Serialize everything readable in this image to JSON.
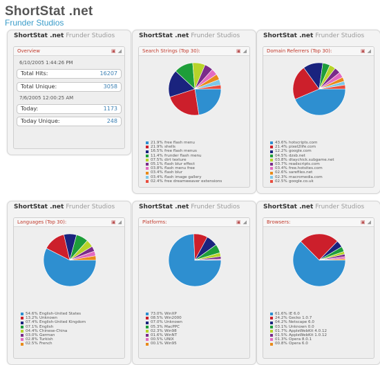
{
  "site": {
    "title": "ShortStat .net",
    "subtitle": "Frunder Studios"
  },
  "brand": {
    "name": "ShortStat .net",
    "studio": "Frunder Studios"
  },
  "overview": {
    "title": "Overview",
    "date1": "6/10/2005 1:44:26 PM",
    "total_hits_label": "Total Hits:",
    "total_hits": "16207",
    "total_unique_label": "Total Unique:",
    "total_unique": "3058",
    "date2": "7/6/2005 12:00:25 AM",
    "today_label": "Today:",
    "today": "1173",
    "today_unique_label": "Today Unique:",
    "today_unique": "248"
  },
  "search": {
    "title": "Search Strings (Top 30):",
    "legend": [
      {
        "value": "21.9%",
        "label": "free flash menu",
        "color": "#2e8fd0"
      },
      {
        "value": "21.9%",
        "label": "shells",
        "color": "#cc1f2b"
      },
      {
        "value": "16.5%",
        "label": "free flash menus",
        "color": "#1a237e"
      },
      {
        "value": "11.4%",
        "label": "frunder flash menu",
        "color": "#1e9e3a"
      },
      {
        "value": "07.5%",
        "label": "dirt texture",
        "color": "#b7d32a"
      },
      {
        "value": "05.1%",
        "label": "flash blur effect",
        "color": "#7a2b8a"
      },
      {
        "value": "03.8%",
        "label": "flash menu free",
        "color": "#e36ac0"
      },
      {
        "value": "03.4%",
        "label": "flash blur",
        "color": "#e88a1a"
      },
      {
        "value": "03.4%",
        "label": "flash image gallery",
        "color": "#7ec8e8"
      },
      {
        "value": "02.4%",
        "label": "free dreamweaver extensions",
        "color": "#e84c3d"
      }
    ]
  },
  "referrers": {
    "title": "Domain Referrers (Top 30):",
    "legend": [
      {
        "value": "43.6%",
        "label": "hotscripts.com",
        "color": "#2e8fd0"
      },
      {
        "value": "21.4%",
        "label": "pixel2life.com",
        "color": "#cc1f2b"
      },
      {
        "value": "12.2%",
        "label": "google.com",
        "color": "#1a237e"
      },
      {
        "value": "04.5%",
        "label": "dzsb.net",
        "color": "#1e9e3a"
      },
      {
        "value": "03.8%",
        "label": "dtaychick.subgame.net",
        "color": "#b7d32a"
      },
      {
        "value": "03.7%",
        "label": "readscripts.com",
        "color": "#7a2b8a"
      },
      {
        "value": "03.4%",
        "label": "free.hotsites.com",
        "color": "#e36ac0"
      },
      {
        "value": "02.6%",
        "label": "sarefiles.net",
        "color": "#e88a1a"
      },
      {
        "value": "02.3%",
        "label": "macromedia.com",
        "color": "#7ec8e8"
      },
      {
        "value": "02.5%",
        "label": "google.co.uk",
        "color": "#e84c3d"
      }
    ]
  },
  "languages": {
    "title": "Languages (Top 30):",
    "legend": [
      {
        "value": "54.6%",
        "label": "English-United States",
        "color": "#2e8fd0"
      },
      {
        "value": "13.2%",
        "label": "Unknown",
        "color": "#cc1f2b"
      },
      {
        "value": "07.4%",
        "label": "English-United Kingdom",
        "color": "#1a237e"
      },
      {
        "value": "07.1%",
        "label": "English",
        "color": "#1e9e3a"
      },
      {
        "value": "04.4%",
        "label": "Chinese-China",
        "color": "#b7d32a"
      },
      {
        "value": "03.0%",
        "label": "German",
        "color": "#7a2b8a"
      },
      {
        "value": "02.8%",
        "label": "Turkish",
        "color": "#e36ac0"
      },
      {
        "value": "02.5%",
        "label": "French",
        "color": "#e88a1a"
      }
    ]
  },
  "platforms": {
    "title": "Platforms:",
    "legend": [
      {
        "value": "73.0%",
        "label": "WinXP",
        "color": "#2e8fd0"
      },
      {
        "value": "08.5%",
        "label": "Win2000",
        "color": "#cc1f2b"
      },
      {
        "value": "07.0%",
        "label": "Unknown",
        "color": "#1a237e"
      },
      {
        "value": "05.3%",
        "label": "MacPPC",
        "color": "#1e9e3a"
      },
      {
        "value": "02.3%",
        "label": "Win98",
        "color": "#b7d32a"
      },
      {
        "value": "01.6%",
        "label": "WinNT",
        "color": "#7a2b8a"
      },
      {
        "value": "00.5%",
        "label": "UNIX",
        "color": "#e36ac0"
      },
      {
        "value": "00.1%",
        "label": "Win95",
        "color": "#e88a1a"
      }
    ]
  },
  "browsers": {
    "title": "Browsers:",
    "legend": [
      {
        "value": "61.6%",
        "label": "IE 6.0",
        "color": "#2e8fd0"
      },
      {
        "value": "24.2%",
        "label": "Gecko 1.0.7",
        "color": "#cc1f2b"
      },
      {
        "value": "04.2%",
        "label": "Netscape 6.0",
        "color": "#1a237e"
      },
      {
        "value": "03.1%",
        "label": "Unknown 0.0",
        "color": "#1e9e3a"
      },
      {
        "value": "01.7%",
        "label": "AppleWebKit 4.0.12",
        "color": "#b7d32a"
      },
      {
        "value": "01.5%",
        "label": "AppleWebKit 1.0.12",
        "color": "#7a2b8a"
      },
      {
        "value": "01.3%",
        "label": "Opera 8.0.1",
        "color": "#e36ac0"
      },
      {
        "value": "00.8%",
        "label": "Opera 6.0",
        "color": "#e88a1a"
      }
    ]
  },
  "chart_data": [
    {
      "type": "pie",
      "title": "Search Strings (Top 30):",
      "categories": [
        "free flash menu",
        "shells",
        "free flash menus",
        "frunder flash menu",
        "dirt texture",
        "flash blur effect",
        "flash menu free",
        "flash blur",
        "flash image gallery",
        "free dreamweaver extensions"
      ],
      "values": [
        21.9,
        21.9,
        16.5,
        11.4,
        7.5,
        5.1,
        3.8,
        3.4,
        3.4,
        2.4
      ]
    },
    {
      "type": "pie",
      "title": "Domain Referrers (Top 30):",
      "categories": [
        "hotscripts.com",
        "pixel2life.com",
        "google.com",
        "dzsb.net",
        "dtaychick.subgame.net",
        "readscripts.com",
        "free.hotsites.com",
        "sarefiles.net",
        "macromedia.com",
        "google.co.uk"
      ],
      "values": [
        43.6,
        21.4,
        12.2,
        4.5,
        3.8,
        3.7,
        3.4,
        2.6,
        2.3,
        2.5
      ]
    },
    {
      "type": "pie",
      "title": "Languages (Top 30):",
      "categories": [
        "English-United States",
        "Unknown",
        "English-United Kingdom",
        "English",
        "Chinese-China",
        "German",
        "Turkish",
        "French"
      ],
      "values": [
        54.6,
        13.2,
        7.4,
        7.1,
        4.4,
        3.0,
        2.8,
        2.5
      ]
    },
    {
      "type": "pie",
      "title": "Platforms:",
      "categories": [
        "WinXP",
        "Win2000",
        "Unknown",
        "MacPPC",
        "Win98",
        "WinNT",
        "UNIX",
        "Win95"
      ],
      "values": [
        73.0,
        8.5,
        7.0,
        5.3,
        2.3,
        1.6,
        0.5,
        0.1
      ]
    },
    {
      "type": "pie",
      "title": "Browsers:",
      "categories": [
        "IE 6.0",
        "Gecko 1.0.7",
        "Netscape 6.0",
        "Unknown 0.0",
        "AppleWebKit 4.0.12",
        "AppleWebKit 1.0.12",
        "Opera 8.0.1",
        "Opera 6.0"
      ],
      "values": [
        61.6,
        24.2,
        4.2,
        3.1,
        1.7,
        1.5,
        1.3,
        0.8
      ]
    }
  ]
}
